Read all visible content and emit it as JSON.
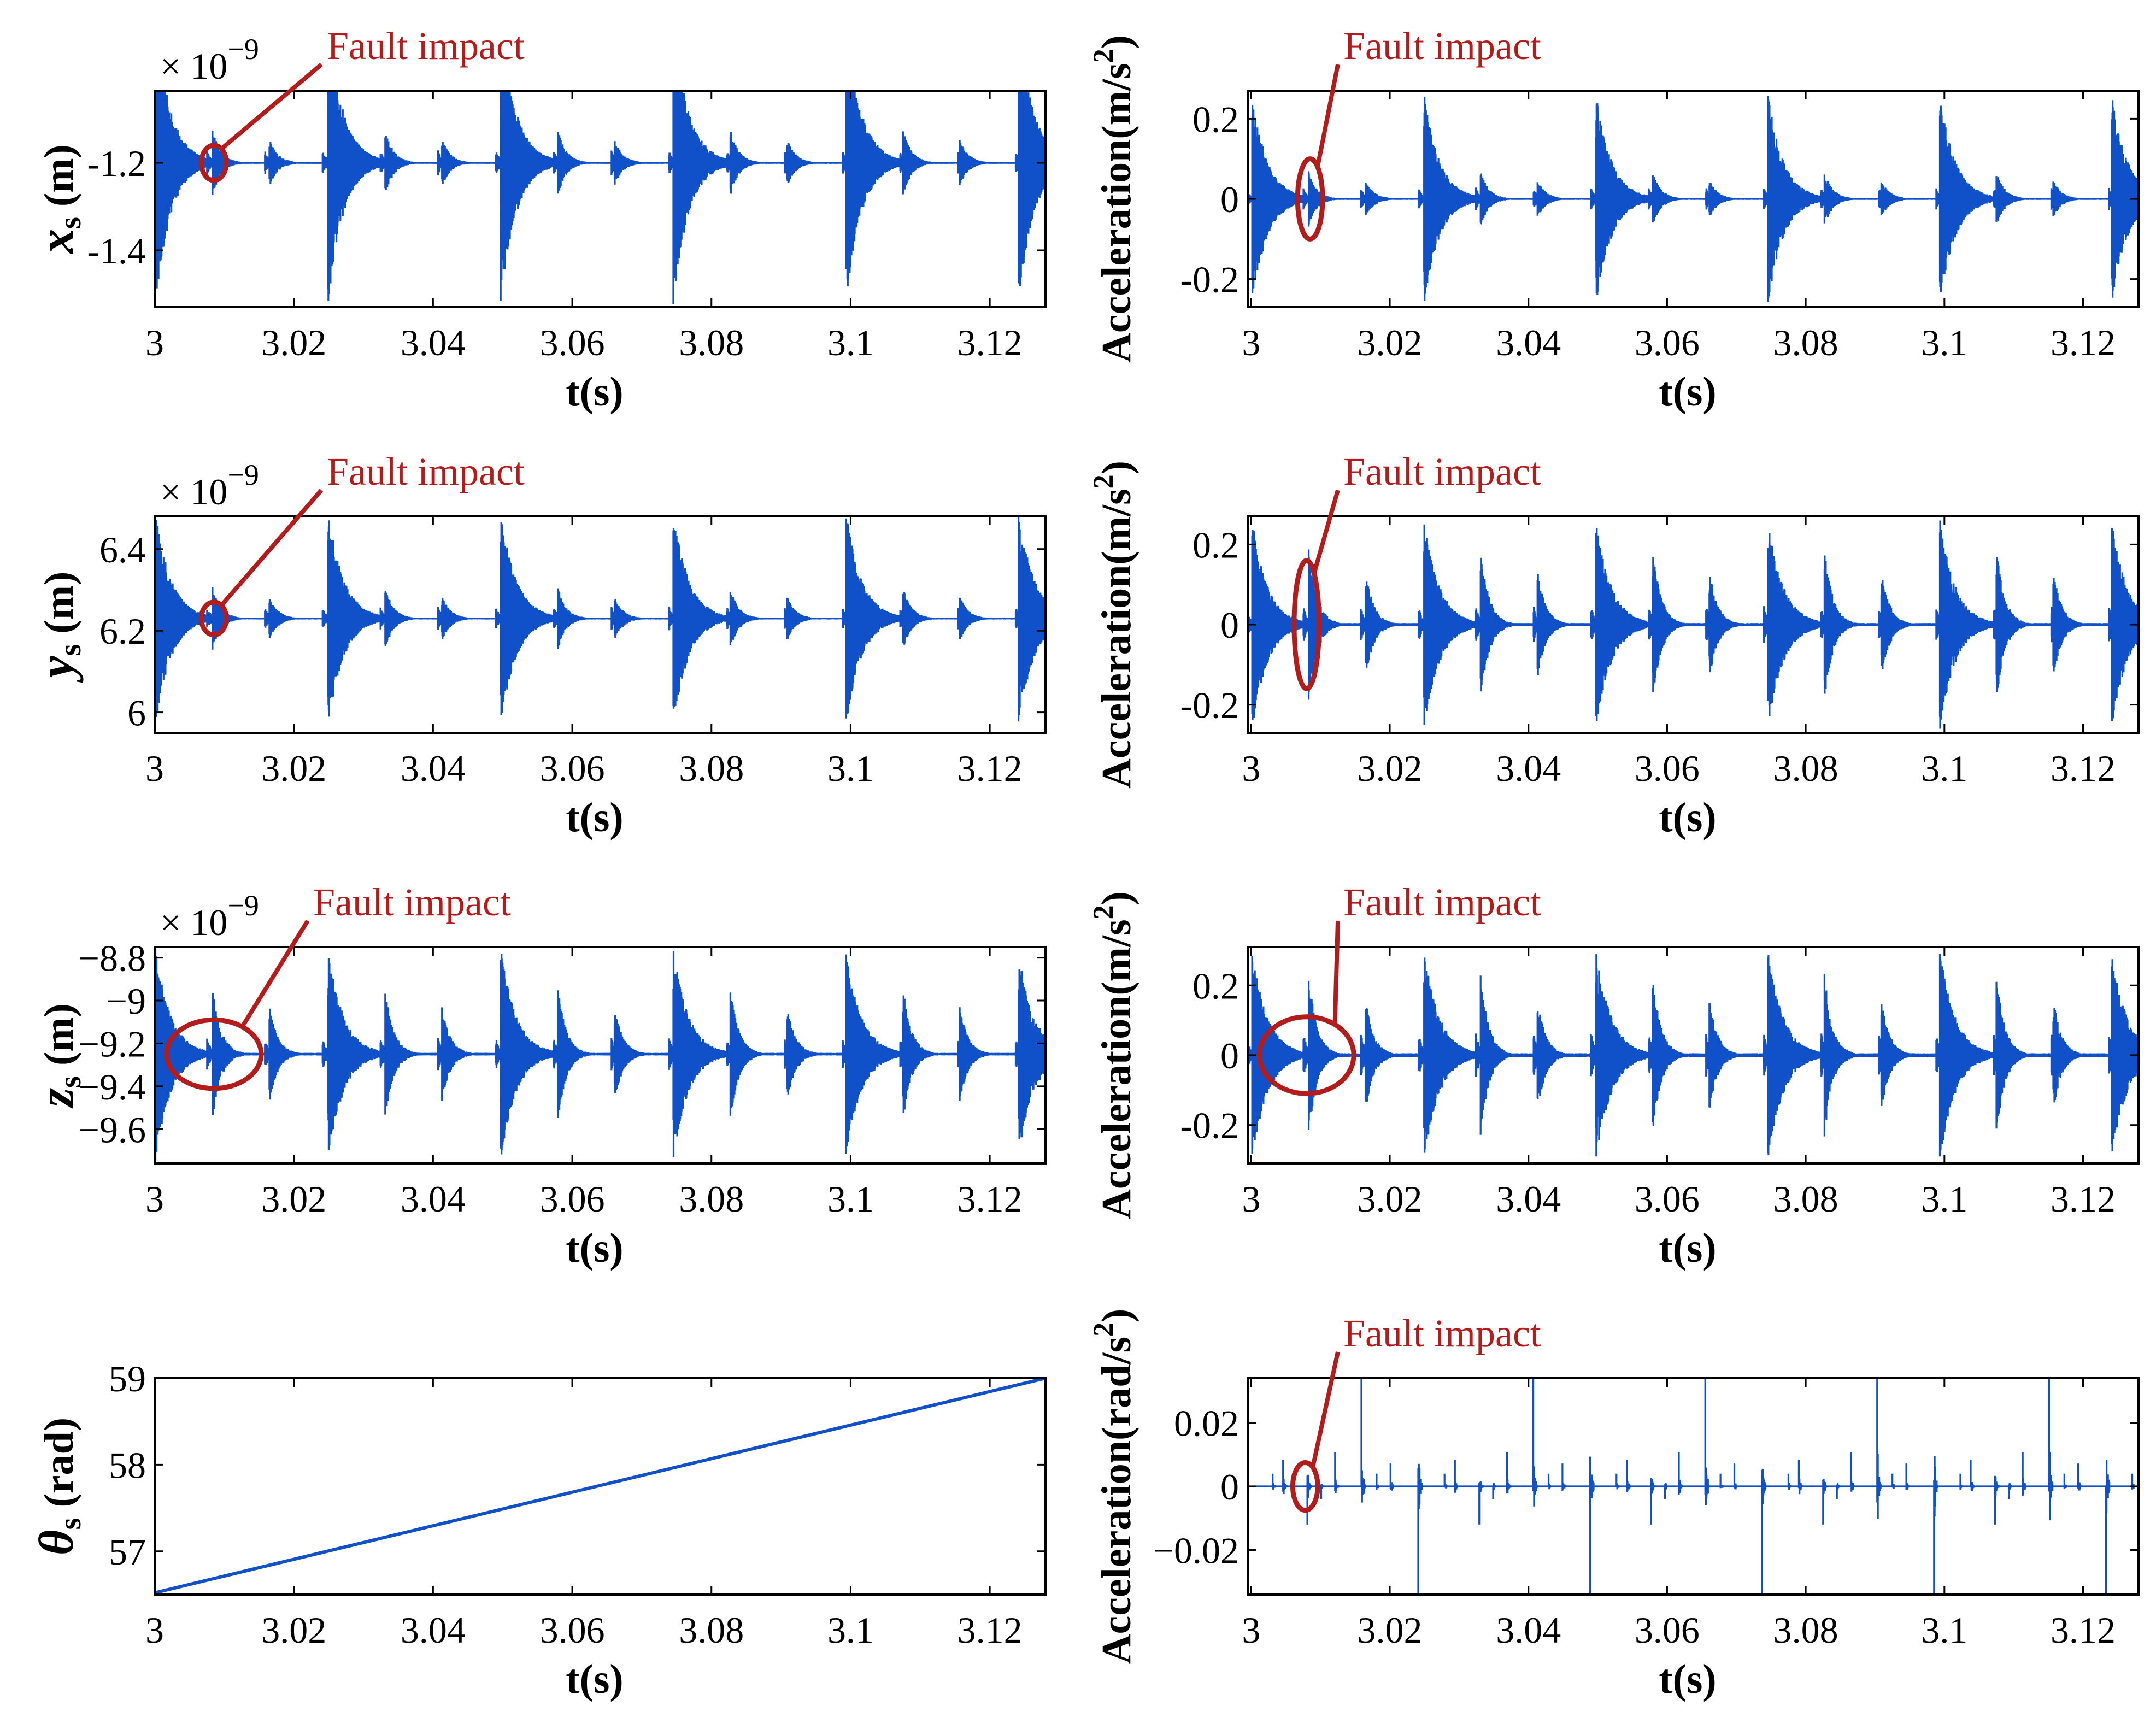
{
  "chart_data": [
    {
      "id": "p1",
      "type": "line",
      "ylabel": "x",
      "ylabel_sub": "s",
      "ylabel_unit": " (m)",
      "ylabel_italic": true,
      "xlabel": "t(s)",
      "xlim": [
        3,
        3.128
      ],
      "ylim": [
        -1.53,
        -1.035
      ],
      "xticks": [
        3,
        3.02,
        3.04,
        3.06,
        3.08,
        3.1,
        3.12
      ],
      "xtick_labels": [
        "3",
        "3.02",
        "3.04",
        "3.06",
        "3.08",
        "3.1",
        "3.12"
      ],
      "yticks": [
        -1.2,
        -1.4
      ],
      "ytick_labels": [
        "-1.2",
        "-1.4"
      ],
      "exponent": "× 10",
      "exponent_power": "−9",
      "series": [
        {
          "color": "#1050c8",
          "kind": "impulse",
          "baseline": -1.2,
          "major_amp": 0.33,
          "minor_amp": 0.08,
          "tiny_amp": 0.03,
          "major_sign": -1
        }
      ],
      "annotation": {
        "text": "Fault impact",
        "color": "#b41c1c",
        "x": 3.0085,
        "y": -1.2,
        "rx": 0.0018,
        "ry": 0.04
      }
    },
    {
      "id": "p2",
      "type": "line",
      "ylabel": "Acceleration(m/s",
      "ylabel_sup": "2",
      "ylabel_close": ")",
      "xlabel": "t(s)",
      "xlim": [
        2.9995,
        3.128
      ],
      "ylim": [
        -0.27,
        0.27
      ],
      "xticks": [
        3,
        3.02,
        3.04,
        3.06,
        3.08,
        3.1,
        3.12
      ],
      "xtick_labels": [
        "3",
        "3.02",
        "3.04",
        "3.06",
        "3.08",
        "3.1",
        "3.12"
      ],
      "yticks": [
        0.2,
        0,
        -0.2
      ],
      "ytick_labels": [
        "0.2",
        "0",
        "-0.2"
      ],
      "series": [
        {
          "color": "#1050c8",
          "kind": "impulse",
          "baseline": 0,
          "major_amp": 0.27,
          "minor_amp": 0.07,
          "tiny_amp": 0.03,
          "major_sign": 0
        }
      ],
      "annotation": {
        "text": "Fault impact",
        "color": "#b41c1c",
        "x": 3.0085,
        "y": 0,
        "rx": 0.0018,
        "ry": 0.1
      }
    },
    {
      "id": "p3",
      "type": "line",
      "ylabel": "y",
      "ylabel_sub": "s",
      "ylabel_unit": " (m)",
      "ylabel_italic": true,
      "xlabel": "t(s)",
      "xlim": [
        3,
        3.128
      ],
      "ylim": [
        5.95,
        6.48
      ],
      "xticks": [
        3,
        3.02,
        3.04,
        3.06,
        3.08,
        3.1,
        3.12
      ],
      "xtick_labels": [
        "3",
        "3.02",
        "3.04",
        "3.06",
        "3.08",
        "3.1",
        "3.12"
      ],
      "yticks": [
        6.4,
        6.2,
        6
      ],
      "ytick_labels": [
        "6.4",
        "6.2",
        "6"
      ],
      "exponent": "× 10",
      "exponent_power": "−9",
      "series": [
        {
          "color": "#1050c8",
          "kind": "impulse",
          "baseline": 6.23,
          "major_amp": 0.27,
          "minor_amp": 0.08,
          "tiny_amp": 0.03,
          "major_sign": 0
        }
      ],
      "annotation": {
        "text": "Fault impact",
        "color": "#b41c1c",
        "x": 3.0085,
        "y": 6.23,
        "rx": 0.0018,
        "ry": 0.04
      }
    },
    {
      "id": "p4",
      "type": "line",
      "ylabel": "Acceleration(m/s",
      "ylabel_sup": "2",
      "ylabel_close": ")",
      "xlabel": "t(s)",
      "xlim": [
        2.9995,
        3.128
      ],
      "ylim": [
        -0.27,
        0.27
      ],
      "xticks": [
        3,
        3.02,
        3.04,
        3.06,
        3.08,
        3.1,
        3.12
      ],
      "xtick_labels": [
        "3",
        "3.02",
        "3.04",
        "3.06",
        "3.08",
        "3.1",
        "3.12"
      ],
      "yticks": [
        0.2,
        0,
        -0.2
      ],
      "ytick_labels": [
        "0.2",
        "0",
        "-0.2"
      ],
      "series": [
        {
          "color": "#1050c8",
          "kind": "impulse",
          "baseline": 0,
          "major_amp": 0.27,
          "minor_amp": 0.2,
          "tiny_amp": 0.05,
          "major_sign": 0
        }
      ],
      "annotation": {
        "text": "Fault impact",
        "color": "#b41c1c",
        "x": 3.008,
        "y": 0,
        "rx": 0.0018,
        "ry": 0.16
      }
    },
    {
      "id": "p5",
      "type": "line",
      "ylabel": "z",
      "ylabel_sub": "s",
      "ylabel_unit": " (m)",
      "ylabel_italic": true,
      "xlabel": "t(s)",
      "xlim": [
        3,
        3.128
      ],
      "ylim": [
        -9.76,
        -8.75
      ],
      "xticks": [
        3,
        3.02,
        3.04,
        3.06,
        3.08,
        3.1,
        3.12
      ],
      "xtick_labels": [
        "3",
        "3.02",
        "3.04",
        "3.06",
        "3.08",
        "3.1",
        "3.12"
      ],
      "yticks": [
        -8.8,
        -9,
        -9.2,
        -9.4,
        -9.6
      ],
      "ytick_labels": [
        "−8.8",
        "−9",
        "−9.2",
        "−9.4",
        "−9.6"
      ],
      "exponent": "× 10",
      "exponent_power": "−9",
      "series": [
        {
          "color": "#1050c8",
          "kind": "impulse",
          "baseline": -9.25,
          "major_amp": 0.5,
          "minor_amp": 0.33,
          "tiny_amp": 0.08,
          "major_sign": 0
        }
      ],
      "annotation": {
        "text": "Fault impact",
        "color": "#b41c1c",
        "x": 3.0085,
        "y": -9.25,
        "rx": 0.0068,
        "ry": 0.16
      }
    },
    {
      "id": "p6",
      "type": "line",
      "ylabel": "Acceleration(m/s",
      "ylabel_sup": "2",
      "ylabel_close": ")",
      "xlabel": "t(s)",
      "xlim": [
        2.9995,
        3.128
      ],
      "ylim": [
        -0.31,
        0.31
      ],
      "xticks": [
        3,
        3.02,
        3.04,
        3.06,
        3.08,
        3.1,
        3.12
      ],
      "xtick_labels": [
        "3",
        "3.02",
        "3.04",
        "3.06",
        "3.08",
        "3.1",
        "3.12"
      ],
      "yticks": [
        0.2,
        0,
        -0.2
      ],
      "ytick_labels": [
        "0.2",
        "0",
        "-0.2"
      ],
      "series": [
        {
          "color": "#1050c8",
          "kind": "impulse",
          "baseline": 0,
          "major_amp": 0.31,
          "minor_amp": 0.24,
          "tiny_amp": 0.07,
          "major_sign": 0
        }
      ],
      "annotation": {
        "text": "Fault impact",
        "color": "#b41c1c",
        "x": 3.008,
        "y": 0,
        "rx": 0.0068,
        "ry": 0.11
      }
    },
    {
      "id": "p7",
      "type": "line",
      "ylabel": "θ",
      "ylabel_sub": "s",
      "ylabel_unit": " (rad)",
      "ylabel_italic": true,
      "xlabel": "t(s)",
      "xlim": [
        3,
        3.128
      ],
      "ylim": [
        56.5,
        59
      ],
      "xticks": [
        3,
        3.02,
        3.04,
        3.06,
        3.08,
        3.1,
        3.12
      ],
      "xtick_labels": [
        "3",
        "3.02",
        "3.04",
        "3.06",
        "3.08",
        "3.1",
        "3.12"
      ],
      "yticks": [
        59,
        58,
        57
      ],
      "ytick_labels": [
        "59",
        "58",
        "57"
      ],
      "series": [
        {
          "color": "#1050c8",
          "kind": "linear",
          "x": [
            3,
            3.128
          ],
          "y": [
            56.52,
            59
          ]
        }
      ]
    },
    {
      "id": "p8",
      "type": "line",
      "ylabel": "Acceleration(rad/s",
      "ylabel_sup": "2",
      "ylabel_close": ")",
      "xlabel": "t(s)",
      "xlim": [
        2.9995,
        3.128
      ],
      "ylim": [
        -0.034,
        0.034
      ],
      "xticks": [
        3,
        3.02,
        3.04,
        3.06,
        3.08,
        3.1,
        3.12
      ],
      "xtick_labels": [
        "3",
        "3.02",
        "3.04",
        "3.06",
        "3.08",
        "3.1",
        "3.12"
      ],
      "yticks": [
        0.02,
        0,
        -0.02
      ],
      "ytick_labels": [
        "0.02",
        "0",
        "−0.02"
      ],
      "series": [
        {
          "color": "#1050c8",
          "kind": "spikes",
          "baseline": 0,
          "major_amp": 0.034,
          "minor_amp": 0.012,
          "tiny_amp": 0.004,
          "major_sign": 0
        }
      ],
      "annotation": {
        "text": "Fault impact",
        "color": "#b41c1c",
        "x": 3.0078,
        "y": 0,
        "rx": 0.0018,
        "ry": 0.0075
      }
    }
  ]
}
